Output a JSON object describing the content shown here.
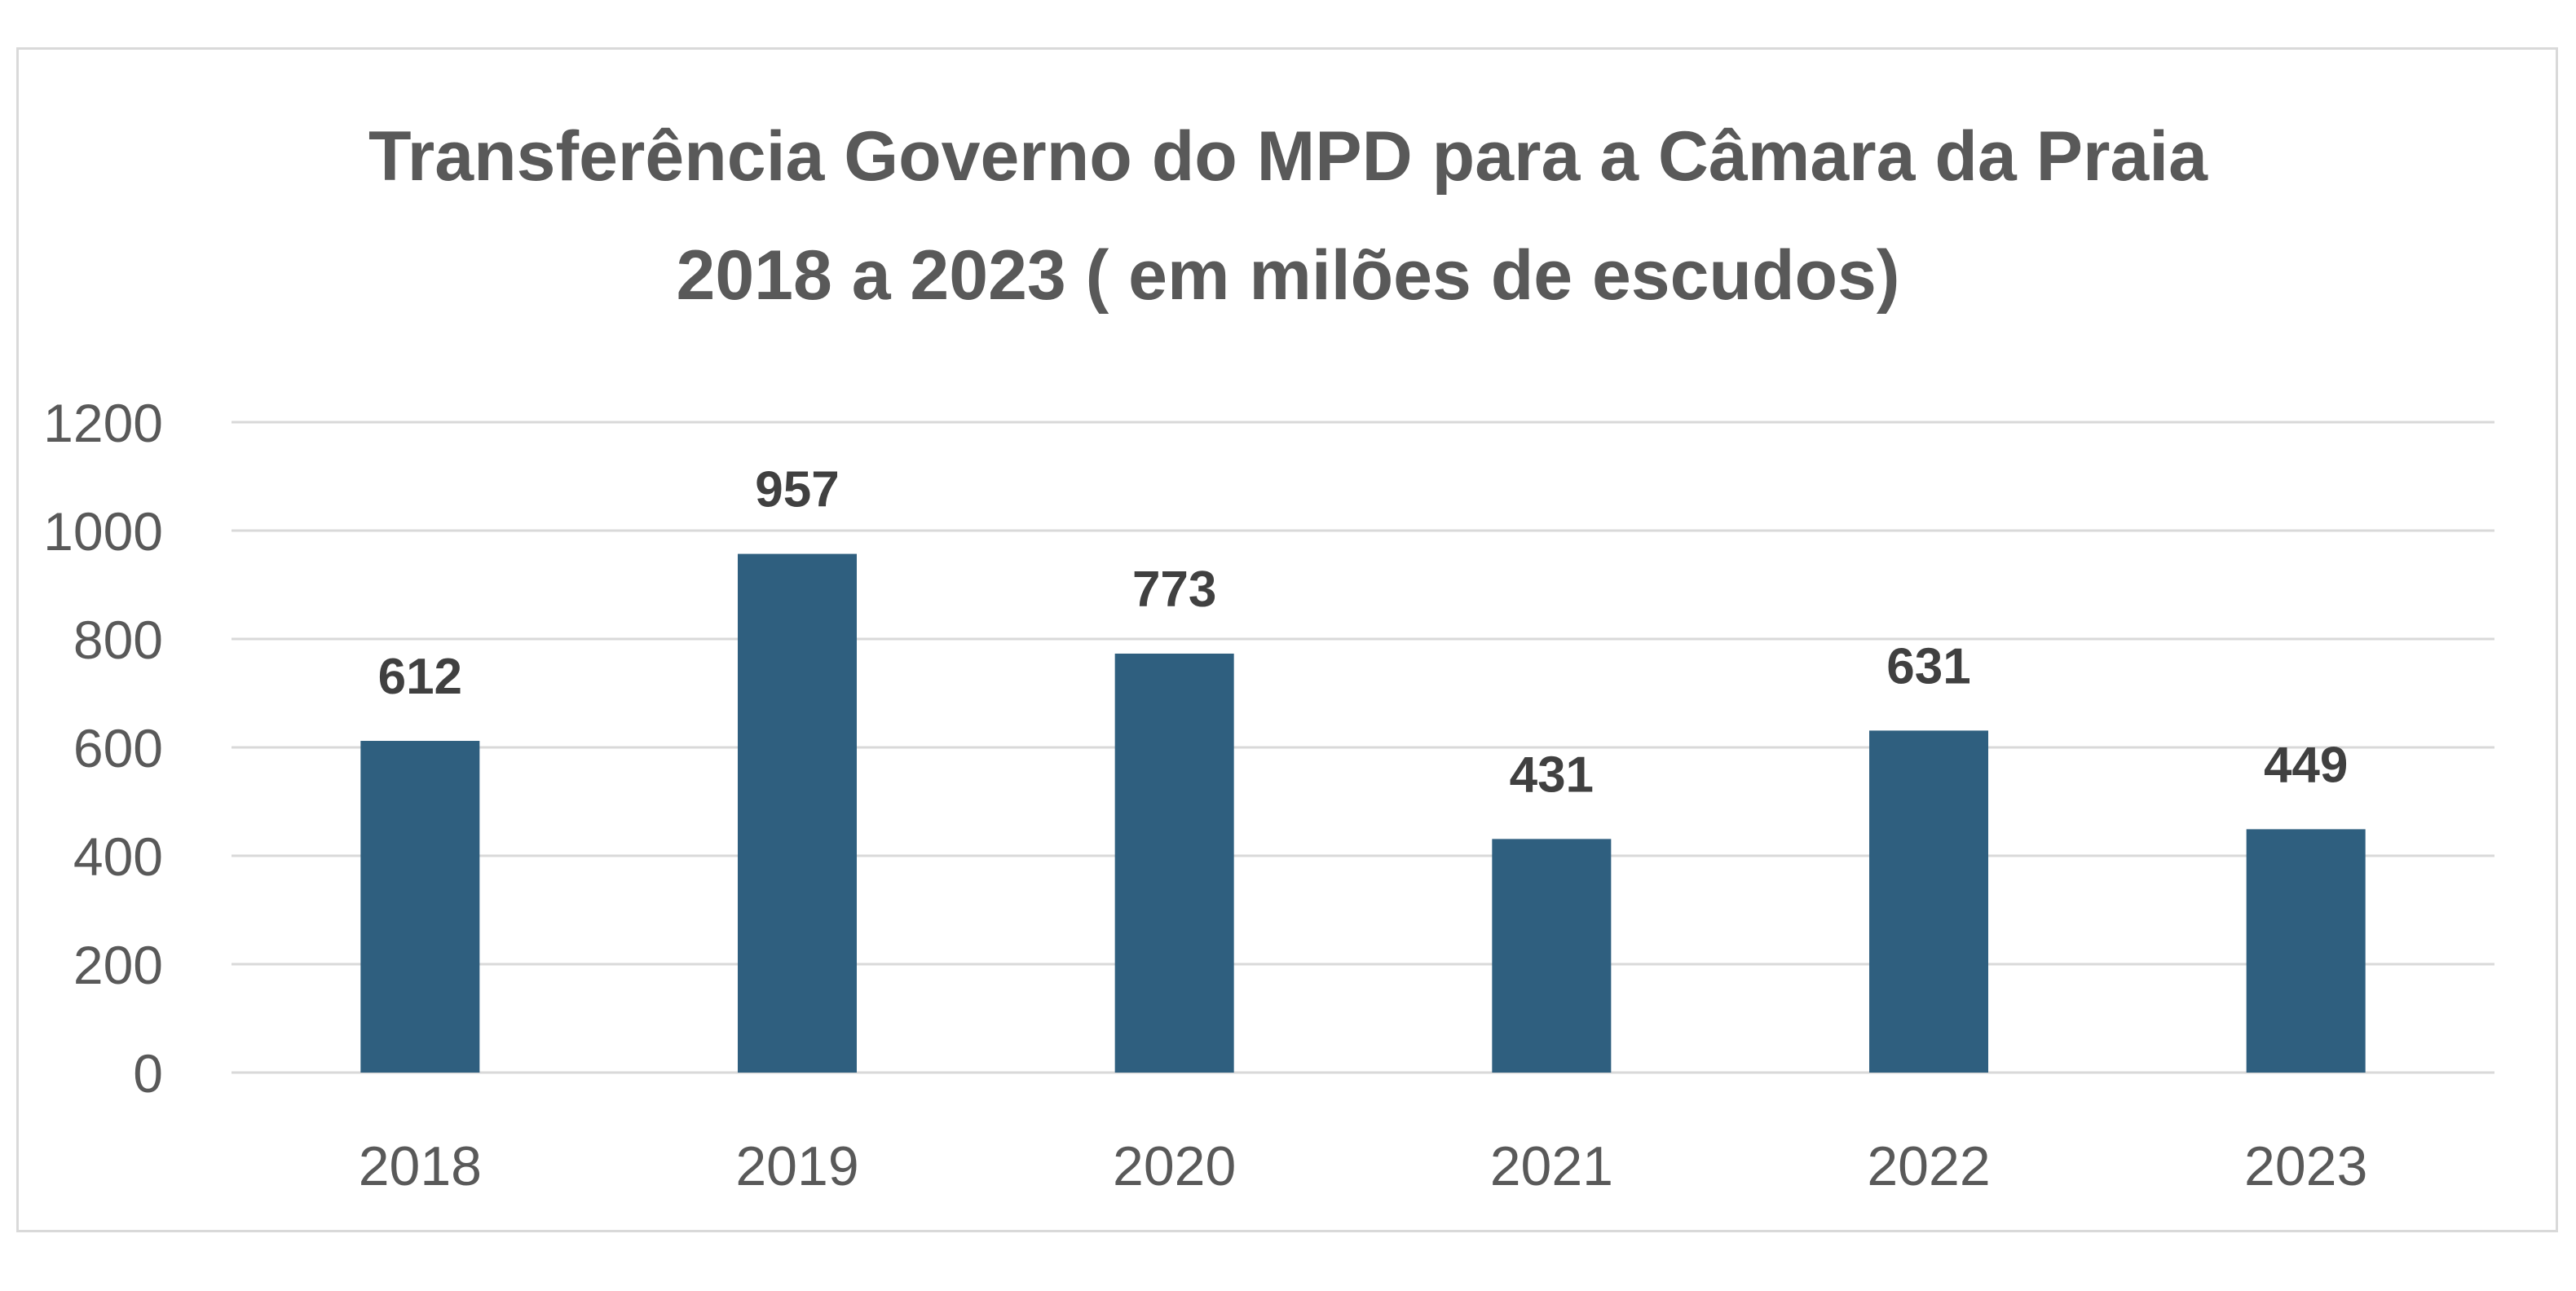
{
  "chart_data": {
    "type": "bar",
    "title": "Transferência Governo do MPD para a Câmara da Praia",
    "subtitle": "2018 a 2023 ( em milões de escudos)",
    "categories": [
      "2018",
      "2019",
      "2020",
      "2021",
      "2022",
      "2023"
    ],
    "values": [
      612,
      957,
      773,
      431,
      631,
      449
    ],
    "data_labels": [
      "612",
      "957",
      "773",
      "431",
      "631",
      "449"
    ],
    "y_ticks": [
      "0",
      "200",
      "400",
      "600",
      "800",
      "1000",
      "1200"
    ],
    "ylim": [
      0,
      1200
    ],
    "grid": true,
    "legend": "none",
    "bar_color": "#2f5f7f",
    "gridline_color": "#d9d9d9",
    "text_color": "#595959",
    "label_color": "#404040"
  }
}
